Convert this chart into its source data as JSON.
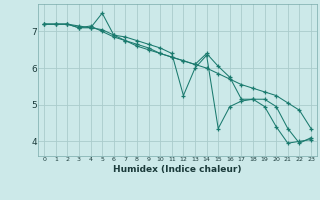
{
  "xlabel": "Humidex (Indice chaleur)",
  "xlim": [
    -0.5,
    23.5
  ],
  "ylim": [
    3.6,
    7.75
  ],
  "background_color": "#cce9e9",
  "grid_color": "#aacccc",
  "line_color": "#1a7a6e",
  "line1_x": [
    0,
    1,
    2,
    3,
    4,
    5,
    6,
    7,
    8,
    9,
    10,
    11,
    12,
    13,
    14,
    15,
    16,
    17,
    18,
    19,
    20,
    21,
    22,
    23
  ],
  "line1_y": [
    7.2,
    7.2,
    7.2,
    7.15,
    7.1,
    7.5,
    6.9,
    6.85,
    6.75,
    6.65,
    6.55,
    6.4,
    5.25,
    6.0,
    6.35,
    4.35,
    4.95,
    5.1,
    5.15,
    4.95,
    4.4,
    3.95,
    4.0,
    4.05
  ],
  "line2_x": [
    0,
    1,
    2,
    3,
    4,
    5,
    6,
    7,
    8,
    9,
    10,
    11,
    12,
    13,
    14,
    15,
    16,
    17,
    18,
    19,
    20,
    21,
    22,
    23
  ],
  "line2_y": [
    7.2,
    7.2,
    7.2,
    7.1,
    7.1,
    7.05,
    6.9,
    6.75,
    6.6,
    6.5,
    6.4,
    6.3,
    6.2,
    6.1,
    6.4,
    6.05,
    5.75,
    5.15,
    5.15,
    5.15,
    4.95,
    4.35,
    3.95,
    4.1
  ],
  "line3_x": [
    0,
    1,
    2,
    3,
    4,
    5,
    6,
    7,
    8,
    9,
    10,
    11,
    12,
    13,
    14,
    15,
    16,
    17,
    18,
    19,
    20,
    21,
    22,
    23
  ],
  "line3_y": [
    7.2,
    7.2,
    7.2,
    7.1,
    7.15,
    7.0,
    6.85,
    6.75,
    6.65,
    6.55,
    6.4,
    6.3,
    6.2,
    6.1,
    6.0,
    5.85,
    5.7,
    5.55,
    5.45,
    5.35,
    5.25,
    5.05,
    4.85,
    4.35
  ],
  "yticks": [
    4,
    5,
    6,
    7
  ],
  "xticks": [
    0,
    1,
    2,
    3,
    4,
    5,
    6,
    7,
    8,
    9,
    10,
    11,
    12,
    13,
    14,
    15,
    16,
    17,
    18,
    19,
    20,
    21,
    22,
    23
  ]
}
